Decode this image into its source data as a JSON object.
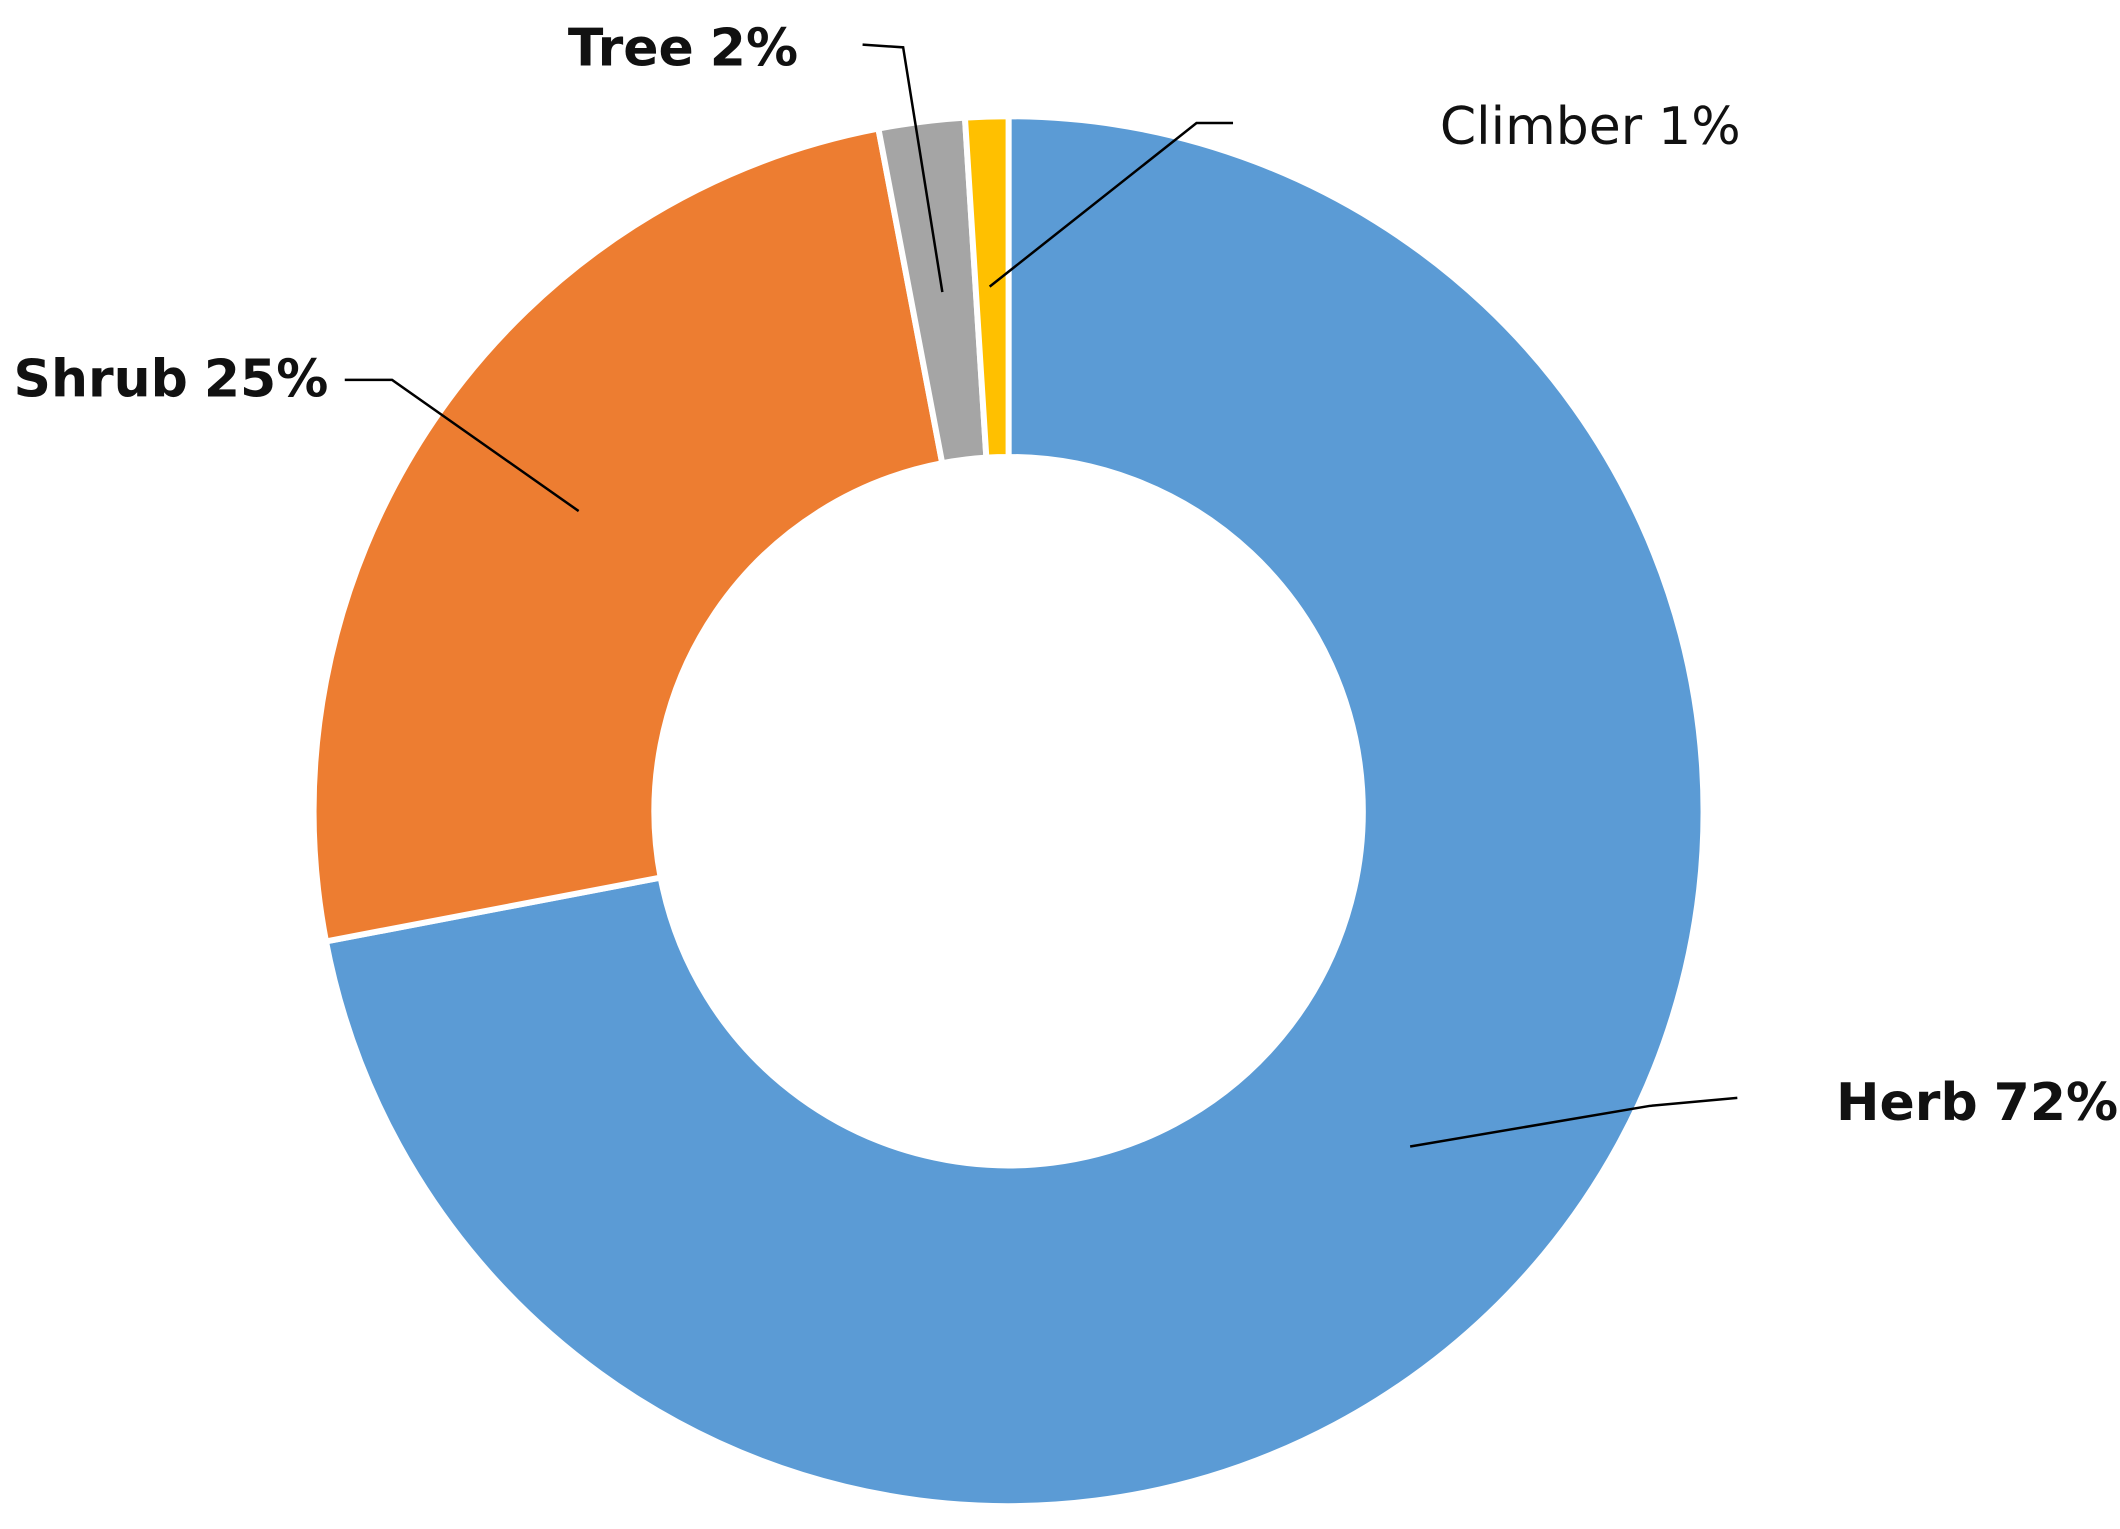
{
  "chart_data": {
    "type": "donut",
    "categories": [
      "Herb",
      "Shrub",
      "Tree",
      "Climber"
    ],
    "values": [
      72,
      25,
      2,
      1
    ],
    "value_labels": [
      "72%",
      "25%",
      "2%",
      "1%"
    ],
    "colors": [
      "#5b9bd5",
      "#ed7d31",
      "#a5a5a5",
      "#ffc000"
    ]
  }
}
